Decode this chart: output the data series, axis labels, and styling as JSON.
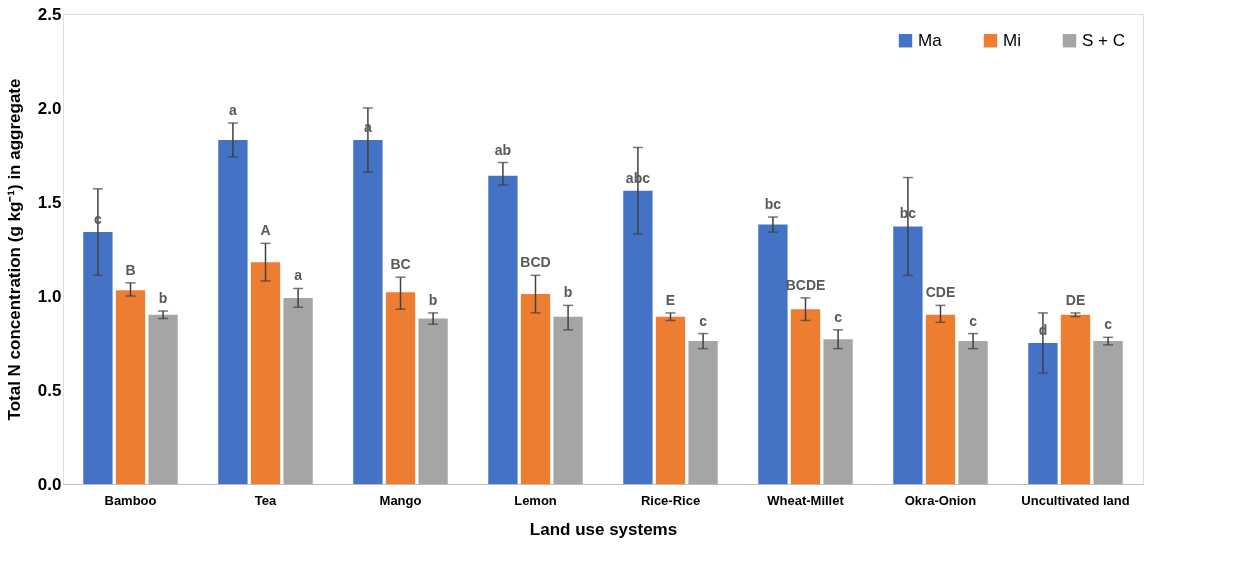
{
  "chart_data": {
    "type": "bar",
    "xlabel": "Land use systems",
    "ylabel": "Total N concentration (g kg⁻¹) in aggregate",
    "categories": [
      "Bamboo",
      "Tea",
      "Mango",
      "Lemon",
      "Rice-Rice",
      "Wheat-Millet",
      "Okra-Onion",
      "Uncultivated land"
    ],
    "ylim": [
      0,
      2.5
    ],
    "yticks": [
      {
        "value": 0,
        "label": "0.0"
      },
      {
        "value": 0.5,
        "label": "0.5"
      },
      {
        "value": 1,
        "label": "1.0"
      },
      {
        "value": 1.5,
        "label": "1.5"
      },
      {
        "value": 2,
        "label": "2.0"
      },
      {
        "value": 2.5,
        "label": "2.5"
      }
    ],
    "grid": false,
    "legend": "top right",
    "series": [
      {
        "name": "Ma",
        "color": "#4472c4",
        "values": [
          1.34,
          1.83,
          1.83,
          1.64,
          1.56,
          1.38,
          1.37,
          0.75
        ],
        "errors": [
          [
            1.11,
            1.57
          ],
          [
            1.74,
            1.92
          ],
          [
            1.66,
            2.0
          ],
          [
            1.59,
            1.71
          ],
          [
            1.33,
            1.79
          ],
          [
            1.34,
            1.42
          ],
          [
            1.11,
            1.63
          ],
          [
            0.59,
            0.91
          ]
        ],
        "value_labels": [
          "c",
          "a",
          "a",
          "ab",
          "abc",
          "bc",
          "bc",
          "d"
        ]
      },
      {
        "name": "Mi",
        "color": "#ed7d31",
        "values": [
          1.03,
          1.18,
          1.02,
          1.01,
          0.89,
          0.93,
          0.9,
          0.9
        ],
        "errors": [
          [
            1.0,
            1.07
          ],
          [
            1.08,
            1.28
          ],
          [
            0.93,
            1.1
          ],
          [
            0.91,
            1.11
          ],
          [
            0.87,
            0.91
          ],
          [
            0.87,
            0.99
          ],
          [
            0.86,
            0.95
          ],
          [
            0.89,
            0.91
          ]
        ],
        "value_labels": [
          "B",
          "A",
          "BC",
          "BCD",
          "E",
          "BCDE",
          "CDE",
          "DE"
        ]
      },
      {
        "name": "S + C",
        "color": "#a5a5a5",
        "values": [
          0.9,
          0.99,
          0.88,
          0.89,
          0.76,
          0.77,
          0.76,
          0.76
        ],
        "errors": [
          [
            0.88,
            0.92
          ],
          [
            0.94,
            1.04
          ],
          [
            0.85,
            0.91
          ],
          [
            0.82,
            0.95
          ],
          [
            0.72,
            0.8
          ],
          [
            0.72,
            0.82
          ],
          [
            0.72,
            0.8
          ],
          [
            0.74,
            0.78
          ]
        ],
        "value_labels": [
          "b",
          "a",
          "b",
          "b",
          "c",
          "c",
          "c",
          "c"
        ]
      }
    ]
  }
}
